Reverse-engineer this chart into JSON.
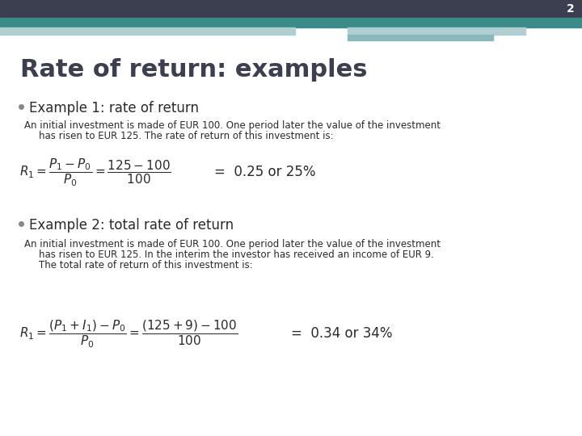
{
  "slide_number": "2",
  "title": "Rate of return: examples",
  "bg_color": "#ffffff",
  "header_dark_color": "#3c3f50",
  "header_teal_color": "#3a8a8a",
  "header_light_teal1": "#b0cfd3",
  "header_light_teal2": "#8ab8be",
  "title_color": "#3c3f50",
  "bullet_color": "#888888",
  "text_color": "#2a2a2a",
  "formula_color": "#2a2a2a",
  "bullet1_heading": "Example 1: rate of return",
  "bullet1_body_line1": "An initial investment is made of EUR 100. One period later the value of the investment",
  "bullet1_body_line2": "has risen to EUR 125. The rate of return of this investment is:",
  "bullet2_heading": "Example 2: total rate of return",
  "bullet2_body_line1": "An initial investment is made of EUR 100. One period later the value of the investment",
  "bullet2_body_line2": "has risen to EUR 125. In the interim the investor has received an income of EUR 9.",
  "bullet2_body_line3": "The total rate of return of this investment is:",
  "formula1_result": "=  0.25 or 25%",
  "formula2_result": "=  0.34 or 34%"
}
